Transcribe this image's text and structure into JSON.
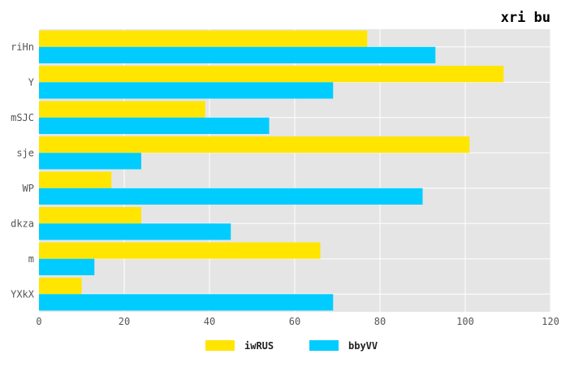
{
  "chart_data": {
    "type": "bar",
    "orientation": "horizontal",
    "title": "xri bu",
    "xlabel": "",
    "ylabel": "",
    "categories": [
      "riHn",
      "Y",
      "mSJC",
      "sje",
      "WP",
      "dkza",
      "m",
      "YXkX"
    ],
    "series": [
      {
        "name": "iwRUS",
        "color": "#FFE500",
        "values": [
          77,
          109,
          39,
          101,
          17,
          24,
          66,
          10
        ]
      },
      {
        "name": "bbyVV",
        "color": "#00CCFF",
        "values": [
          93,
          69,
          54,
          24,
          90,
          45,
          13,
          69
        ]
      }
    ],
    "xlim": [
      0,
      120
    ],
    "xticks": [
      "0",
      "20",
      "40",
      "60",
      "80",
      "100",
      "120"
    ],
    "grid": true,
    "background": "#E5E5E5",
    "legend_position": "bottom-center"
  }
}
